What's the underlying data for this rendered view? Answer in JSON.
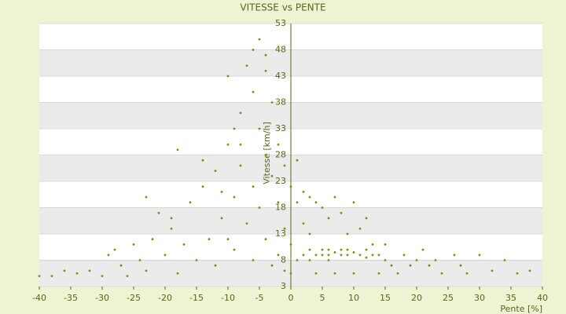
{
  "chart_data": {
    "type": "scatter",
    "title": "VITESSE vs PENTE",
    "x_label": "Pente [%]",
    "y_label": "Vitesse [km/h]",
    "color": "#7c8c12",
    "xlim": [
      -40,
      40
    ],
    "xticks": [
      -40,
      -35,
      -30,
      -25,
      -20,
      -15,
      -10,
      -5,
      0,
      5,
      10,
      15,
      20,
      25,
      30,
      35,
      40
    ],
    "ylim": [
      3,
      53
    ],
    "yticks": [
      3,
      8,
      13,
      18,
      23,
      28,
      33,
      38,
      43,
      48,
      53
    ],
    "x": [
      -40,
      -38,
      -36,
      -34,
      -32,
      -30,
      -29,
      -28,
      -27,
      -26,
      -25,
      -24,
      -23,
      -22,
      -21,
      -20,
      -19,
      -18,
      -17,
      -16,
      -15,
      -14,
      -13,
      -12,
      -12,
      -11,
      -10,
      -10,
      -9,
      -9,
      -8,
      -8,
      -7,
      -7,
      -6,
      -6,
      -6,
      -5,
      -5,
      -5,
      -4,
      -4,
      -4,
      -3,
      -3,
      -3,
      -2,
      -2,
      -2,
      -1,
      -1,
      -1,
      0,
      0,
      0,
      1,
      1,
      1,
      2,
      2,
      2,
      3,
      3,
      3,
      4,
      4,
      4,
      5,
      5,
      5,
      6,
      6,
      6,
      7,
      7,
      7,
      8,
      8,
      8,
      9,
      9,
      10,
      10,
      10,
      11,
      11,
      12,
      12,
      13,
      13,
      14,
      14,
      15,
      15,
      16,
      17,
      18,
      19,
      20,
      21,
      22,
      23,
      24,
      26,
      27,
      28,
      30,
      32,
      34,
      36,
      38,
      -18,
      -19,
      -23,
      -14,
      -11,
      -8,
      -6,
      -4,
      -9,
      -10,
      12,
      6,
      3,
      9
    ],
    "y": [
      5,
      5,
      6,
      5.5,
      6,
      5,
      9,
      10,
      7,
      5,
      11,
      8,
      6,
      12,
      17,
      9,
      14,
      5.5,
      11,
      19,
      8,
      22,
      12,
      25,
      7,
      16,
      30,
      43,
      20,
      10,
      36,
      26,
      45,
      15,
      40,
      22,
      8,
      50,
      33,
      18,
      47,
      28,
      12,
      38,
      24,
      7,
      30,
      19,
      9,
      26,
      14,
      6,
      22,
      11,
      5.5,
      27,
      19,
      8,
      21,
      15,
      9,
      20,
      13,
      8,
      19,
      9,
      5.5,
      18,
      9,
      10,
      16,
      9,
      8,
      20,
      9.5,
      5.5,
      17,
      9,
      10,
      13,
      9,
      19,
      9.5,
      5.5,
      14,
      9,
      8.5,
      16,
      9,
      11,
      9,
      5.5,
      8,
      11,
      7,
      5.5,
      9,
      7,
      8,
      10,
      7,
      8,
      5.5,
      9,
      7,
      5.5,
      9,
      6,
      8,
      5.5,
      6,
      29,
      16,
      20,
      27,
      21,
      30,
      48,
      44,
      33,
      12,
      10,
      10,
      10,
      10
    ],
    "grid": true
  }
}
